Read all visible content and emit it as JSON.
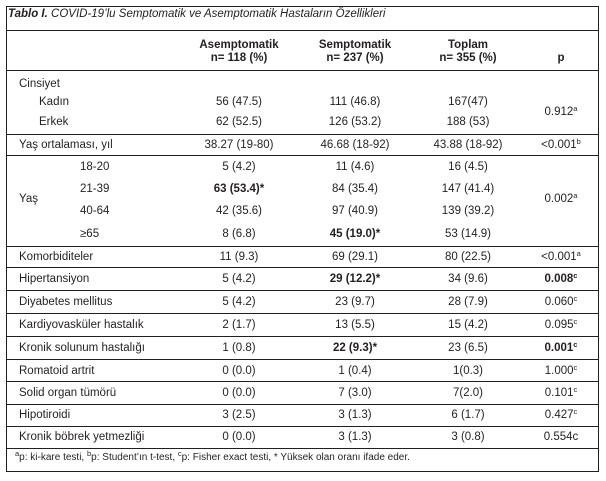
{
  "title": {
    "prefix": "Tablo I.",
    "text": "COVID-19’lu Semptomatik ve Asemptomatik Hastaların Özellikleri"
  },
  "columns": [
    {
      "name": "Asemptomatik",
      "n": "n= 118 (%)"
    },
    {
      "name": "Semptomatik",
      "n": "n= 237 (%)"
    },
    {
      "name": "Toplam",
      "n": "n= 355 (%)"
    },
    {
      "name": "p",
      "n": ""
    }
  ],
  "rows": {
    "cinsiyet": {
      "label": "Cinsiyet"
    },
    "kadin": {
      "label": "Kadın",
      "v1": "56 (47.5)",
      "v2": "111 (46.8)",
      "v3": "167(47)"
    },
    "erkek": {
      "label": "Erkek",
      "v1": "62 (52.5)",
      "v2": "126 (53.2)",
      "v3": "188 (53)"
    },
    "cinsiyet_p": {
      "p": "0.912",
      "sup": "a"
    },
    "yas_ort": {
      "label": "Yaş ortalaması, yıl",
      "v1": "38.27 (19-80)",
      "v2": "46.68 (18-92)",
      "v3": "43.88 (18-92)",
      "p": "<0.001",
      "sup": "b"
    },
    "yas": {
      "label": "Yaş",
      "p": "0.002",
      "sup": "a"
    },
    "yas_18_20": {
      "label": "18-20",
      "v1": "5 (4.2)",
      "v2": "11 (4.6)",
      "v3": "16 (4.5)"
    },
    "yas_21_39": {
      "label": "21-39",
      "v1": "63 (53.4)*",
      "v2": "84 (35.4)",
      "v3": "147 (41.4)"
    },
    "yas_40_64": {
      "label": "40-64",
      "v1": "42 (35.6)",
      "v2": "97 (40.9)",
      "v3": "139 (39.2)"
    },
    "yas_65": {
      "label": "≥65",
      "v1": "8 (6.8)",
      "v2": "45 (19.0)*",
      "v3": "53 (14.9)"
    },
    "komorbid": {
      "label": "Komorbiditeler",
      "v1": "11 (9.3)",
      "v2": "69 (29.1)",
      "v3": "80 (22.5)",
      "p": "<0.001",
      "sup": "a"
    },
    "hipertansiyon": {
      "label": "Hipertansiyon",
      "v1": "5 (4.2)",
      "v2": "29 (12.2)*",
      "v3": "34 (9.6)",
      "p": "0.008",
      "sup": "c"
    },
    "diyabet": {
      "label": "Diyabetes mellitus",
      "v1": "5 (4.2)",
      "v2": "23 (9.7)",
      "v3": "28 (7.9)",
      "p": "0.060",
      "sup": "c"
    },
    "kardiyo": {
      "label": "Kardiyovasküler hastalık",
      "v1": "2 (1.7)",
      "v2": "13 (5.5)",
      "v3": "15 (4.2)",
      "p": "0.095",
      "sup": "c"
    },
    "kronik_solunum": {
      "label": "Kronik solunum hastalığı",
      "v1": "1 (0.8)",
      "v2": "22 (9.3)*",
      "v3": "23 (6.5)",
      "p": "0.001",
      "sup": "c"
    },
    "romatoid": {
      "label": "Romatoid artrit",
      "v1": "0 (0.0)",
      "v2": "1 (0.4)",
      "v3": "1(0.3)",
      "p": "1.000",
      "sup": "c"
    },
    "solid": {
      "label": "Solid organ tümörü",
      "v1": "0 (0.0)",
      "v2": "7 (3.0)",
      "v3": "7(2.0)",
      "p": "0.101",
      "sup": "c"
    },
    "hipotiroidi": {
      "label": "Hipotiroidi",
      "v1": "3 (2.5)",
      "v2": "3 (1.3)",
      "v3": "6 (1.7)",
      "p": "0.427",
      "sup": "c"
    },
    "bobrek": {
      "label": "Kronik böbrek yetmezliği",
      "v1": "0 (0.0)",
      "v2": "3 (1.3)",
      "v3": "3 (0.8)",
      "p": "0.554c"
    }
  },
  "footnote": {
    "a_sup": "a",
    "a_text": "p: ki-kare testi, ",
    "b_sup": "b",
    "b_text": "p: Student’ın t-test, ",
    "c_sup": "c",
    "c_text": "p: Fisher exact testi, * Yüksek olan oranı ifade eder."
  }
}
